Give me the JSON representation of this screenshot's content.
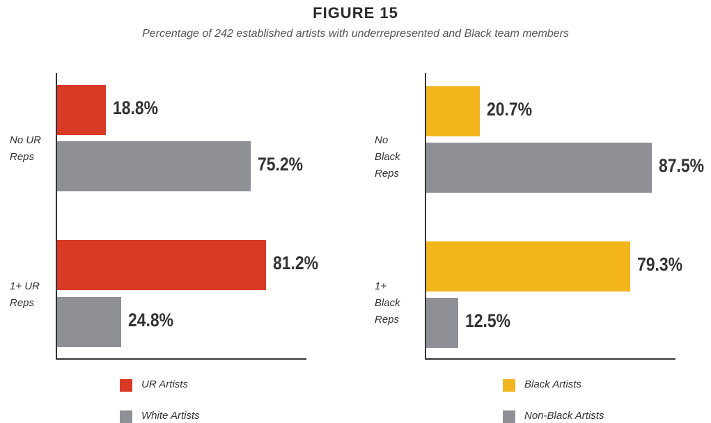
{
  "title": "FIGURE 15",
  "subtitle": "Percentage of 242 established artists with underrepresented and Black team members",
  "chart_data": [
    {
      "type": "bar",
      "orientation": "horizontal",
      "categories": [
        "No UR Reps",
        "1+ UR Reps"
      ],
      "xlim": [
        0,
        100
      ],
      "series": [
        {
          "name": "UR Artists",
          "color": "#d93a26",
          "values": [
            18.8,
            81.2
          ],
          "value_labels": [
            "18.8%",
            "81.2%"
          ]
        },
        {
          "name": "White Artists",
          "color": "#8e9096",
          "values": [
            75.2,
            24.8
          ],
          "value_labels": [
            "75.2%",
            "24.8%"
          ]
        }
      ]
    },
    {
      "type": "bar",
      "orientation": "horizontal",
      "categories": [
        "No Black Reps",
        "1+ Black Reps"
      ],
      "xlim": [
        0,
        100
      ],
      "series": [
        {
          "name": "Black Artists",
          "color": "#f2b51c",
          "values": [
            20.7,
            79.3
          ],
          "value_labels": [
            "20.7%",
            "79.3%"
          ]
        },
        {
          "name": "Non-Black Artists",
          "color": "#8e9096",
          "values": [
            87.5,
            12.5
          ],
          "value_labels": [
            "87.5%",
            "12.5%"
          ]
        }
      ]
    }
  ]
}
